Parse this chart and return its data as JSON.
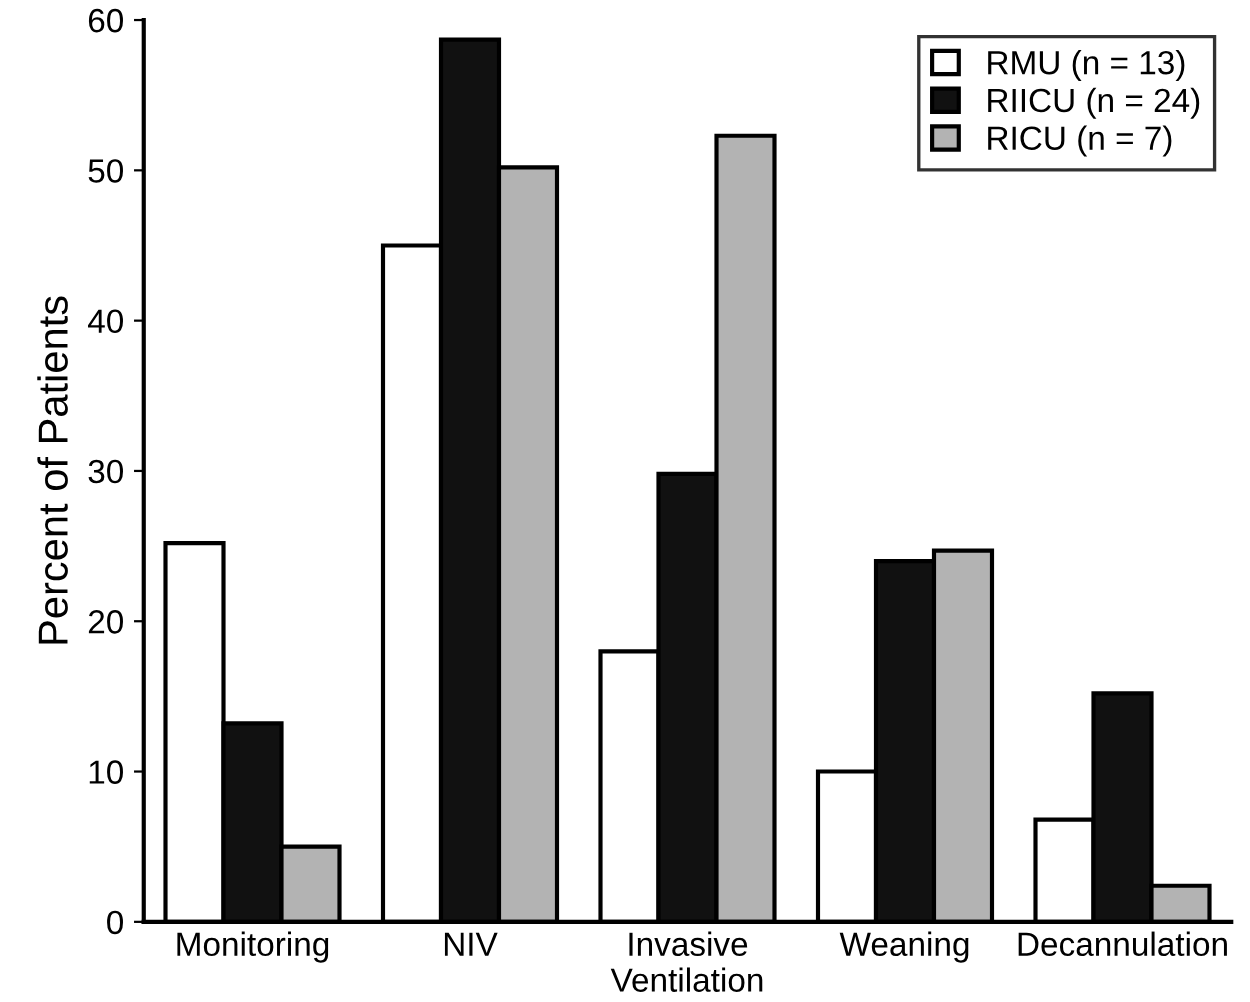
{
  "chart_data": {
    "type": "bar",
    "ylabel": "Percent of Patients",
    "categories": [
      "Monitoring",
      "NIV",
      "Invasive\nVentilation",
      "Weaning",
      "Decannulation"
    ],
    "series": [
      {
        "name": "RMU (n = 13)",
        "color": "#ffffff",
        "values": [
          25.2,
          45.0,
          18.0,
          10.0,
          6.8
        ]
      },
      {
        "name": "RIICU (n = 24)",
        "color": "#111111",
        "values": [
          13.2,
          58.7,
          29.8,
          24.0,
          15.2
        ]
      },
      {
        "name": "RICU (n = 7)",
        "color": "#b3b3b3",
        "values": [
          5.0,
          50.2,
          52.3,
          24.7,
          2.4
        ]
      }
    ],
    "ylim": [
      0,
      60
    ],
    "yticks": [
      0,
      10,
      20,
      30,
      40,
      50,
      60
    ],
    "grid": false,
    "legend": "top right"
  }
}
